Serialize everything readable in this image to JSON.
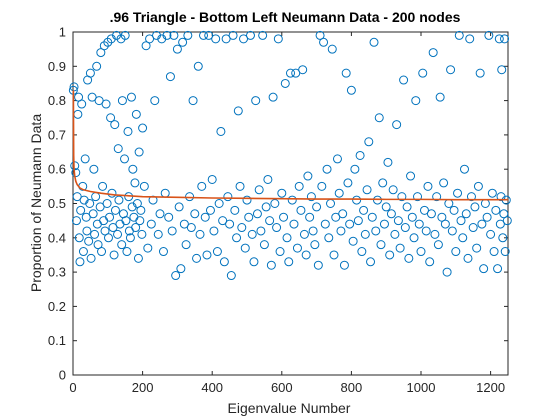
{
  "chart_data": {
    "type": "scatter",
    "title": ".96 Triangle - Bottom Left Neumann Data - 200 nodes",
    "xlabel": "Eigenvalue Number",
    "ylabel": "Proportion of Neumann Data",
    "xlim": [
      0,
      1250
    ],
    "ylim": [
      0,
      1
    ],
    "xticks": [
      0,
      200,
      400,
      600,
      800,
      1000,
      1200
    ],
    "xtick_labels": [
      "0",
      "200",
      "400",
      "600",
      "800",
      "1000",
      "1200"
    ],
    "yticks": [
      0,
      0.1,
      0.2,
      0.3,
      0.4,
      0.5,
      0.6,
      0.7,
      0.8,
      0.9,
      1
    ],
    "ytick_labels": [
      "0",
      "0.1",
      "0.2",
      "0.3",
      "0.4",
      "0.5",
      "0.6",
      "0.7",
      "0.8",
      "0.9",
      "1"
    ],
    "grid": false,
    "series": [
      {
        "marker": "circle-open",
        "color": "#0072BD",
        "points": [
          [
            1,
            0.83
          ],
          [
            3,
            0.84
          ],
          [
            5,
            0.61
          ],
          [
            8,
            0.59
          ],
          [
            10,
            0.45
          ],
          [
            12,
            0.52
          ],
          [
            14,
            0.76
          ],
          [
            16,
            0.81
          ],
          [
            18,
            0.4
          ],
          [
            20,
            0.33
          ],
          [
            22,
            0.48
          ],
          [
            25,
            0.79
          ],
          [
            28,
            0.55
          ],
          [
            30,
            0.36
          ],
          [
            32,
            0.51
          ],
          [
            35,
            0.63
          ],
          [
            38,
            0.46
          ],
          [
            40,
            0.42
          ],
          [
            42,
            0.86
          ],
          [
            45,
            0.39
          ],
          [
            48,
            0.5
          ],
          [
            50,
            0.88
          ],
          [
            52,
            0.34
          ],
          [
            55,
            0.81
          ],
          [
            58,
            0.47
          ],
          [
            60,
            0.6
          ],
          [
            62,
            0.41
          ],
          [
            65,
            0.52
          ],
          [
            68,
            0.9
          ],
          [
            70,
            0.44
          ],
          [
            72,
            0.38
          ],
          [
            75,
            0.8
          ],
          [
            78,
            0.49
          ],
          [
            80,
            0.94
          ],
          [
            82,
            0.36
          ],
          [
            85,
            0.55
          ],
          [
            88,
            0.45
          ],
          [
            90,
            0.96
          ],
          [
            92,
            0.42
          ],
          [
            95,
            0.79
          ],
          [
            98,
            0.5
          ],
          [
            100,
            0.97
          ],
          [
            102,
            0.4
          ],
          [
            105,
            0.46
          ],
          [
            108,
            0.75
          ],
          [
            110,
            0.98
          ],
          [
            112,
            0.53
          ],
          [
            115,
            0.43
          ],
          [
            118,
            0.35
          ],
          [
            120,
            0.73
          ],
          [
            122,
            0.48
          ],
          [
            125,
            0.99
          ],
          [
            128,
            0.41
          ],
          [
            130,
            0.66
          ],
          [
            132,
            0.51
          ],
          [
            135,
            0.44
          ],
          [
            138,
            0.98
          ],
          [
            140,
            0.38
          ],
          [
            142,
            0.8
          ],
          [
            145,
            0.47
          ],
          [
            148,
            0.63
          ],
          [
            150,
            0.99
          ],
          [
            152,
            0.45
          ],
          [
            155,
            0.36
          ],
          [
            158,
            0.71
          ],
          [
            160,
            0.52
          ],
          [
            162,
            0.42
          ],
          [
            165,
            0.4
          ],
          [
            168,
            0.81
          ],
          [
            170,
            0.49
          ],
          [
            172,
            0.6
          ],
          [
            175,
            0.46
          ],
          [
            178,
            0.56
          ],
          [
            180,
            0.43
          ],
          [
            182,
            0.76
          ],
          [
            185,
            0.5
          ],
          [
            188,
            0.34
          ],
          [
            190,
            0.65
          ],
          [
            192,
            0.45
          ],
          [
            195,
            0.48
          ],
          [
            198,
            0.41
          ],
          [
            200,
            0.72
          ],
          [
            205,
            0.55
          ],
          [
            210,
            0.96
          ],
          [
            215,
            0.37
          ],
          [
            220,
            0.98
          ],
          [
            225,
            0.44
          ],
          [
            230,
            0.51
          ],
          [
            235,
            0.8
          ],
          [
            240,
            0.99
          ],
          [
            245,
            0.41
          ],
          [
            250,
            0.47
          ],
          [
            255,
            0.98
          ],
          [
            260,
            0.36
          ],
          [
            265,
            0.53
          ],
          [
            270,
            0.99
          ],
          [
            275,
            0.46
          ],
          [
            280,
            0.87
          ],
          [
            285,
            0.42
          ],
          [
            290,
            0.99
          ],
          [
            295,
            0.29
          ],
          [
            300,
            0.95
          ],
          [
            305,
            0.49
          ],
          [
            310,
            0.31
          ],
          [
            315,
            0.97
          ],
          [
            320,
            0.44
          ],
          [
            325,
            0.38
          ],
          [
            330,
            0.99
          ],
          [
            335,
            0.52
          ],
          [
            340,
            0.43
          ],
          [
            345,
            0.8
          ],
          [
            350,
            0.47
          ],
          [
            355,
            0.34
          ],
          [
            360,
            0.9
          ],
          [
            365,
            0.41
          ],
          [
            370,
            0.55
          ],
          [
            375,
            0.99
          ],
          [
            380,
            0.46
          ],
          [
            385,
            0.35
          ],
          [
            390,
            0.99
          ],
          [
            395,
            0.48
          ],
          [
            400,
            0.57
          ],
          [
            405,
            0.42
          ],
          [
            410,
            0.98
          ],
          [
            415,
            0.36
          ],
          [
            420,
            0.5
          ],
          [
            425,
            0.71
          ],
          [
            430,
            0.45
          ],
          [
            435,
            0.33
          ],
          [
            440,
            0.98
          ],
          [
            445,
            0.52
          ],
          [
            450,
            0.44
          ],
          [
            455,
            0.29
          ],
          [
            460,
            0.99
          ],
          [
            465,
            0.48
          ],
          [
            470,
            0.4
          ],
          [
            475,
            0.77
          ],
          [
            480,
            0.55
          ],
          [
            485,
            0.43
          ],
          [
            490,
            0.98
          ],
          [
            495,
            0.37
          ],
          [
            500,
            0.51
          ],
          [
            505,
            0.46
          ],
          [
            510,
            0.99
          ],
          [
            515,
            0.41
          ],
          [
            520,
            0.33
          ],
          [
            525,
            0.8
          ],
          [
            530,
            0.47
          ],
          [
            535,
            0.54
          ],
          [
            540,
            0.42
          ],
          [
            545,
            0.99
          ],
          [
            550,
            0.38
          ],
          [
            555,
            0.49
          ],
          [
            560,
            0.57
          ],
          [
            565,
            0.45
          ],
          [
            570,
            0.32
          ],
          [
            575,
            0.81
          ],
          [
            580,
            0.5
          ],
          [
            585,
            0.43
          ],
          [
            590,
            0.98
          ],
          [
            595,
            0.36
          ],
          [
            600,
            0.53
          ],
          [
            605,
            0.46
          ],
          [
            610,
            0.85
          ],
          [
            615,
            0.4
          ],
          [
            620,
            0.33
          ],
          [
            625,
            0.88
          ],
          [
            630,
            0.51
          ],
          [
            635,
            0.44
          ],
          [
            640,
            0.88
          ],
          [
            645,
            0.37
          ],
          [
            650,
            0.55
          ],
          [
            655,
            0.48
          ],
          [
            660,
            0.89
          ],
          [
            665,
            0.41
          ],
          [
            670,
            0.35
          ],
          [
            675,
            0.58
          ],
          [
            680,
            0.46
          ],
          [
            685,
            0.52
          ],
          [
            690,
            0.42
          ],
          [
            695,
            0.38
          ],
          [
            700,
            0.49
          ],
          [
            705,
            0.32
          ],
          [
            710,
            0.99
          ],
          [
            715,
            0.55
          ],
          [
            720,
            0.97
          ],
          [
            725,
            0.44
          ],
          [
            730,
            0.6
          ],
          [
            735,
            0.4
          ],
          [
            740,
            0.5
          ],
          [
            745,
            0.95
          ],
          [
            750,
            0.35
          ],
          [
            755,
            0.46
          ],
          [
            760,
            0.63
          ],
          [
            765,
            0.53
          ],
          [
            770,
            0.42
          ],
          [
            775,
            0.47
          ],
          [
            780,
            0.32
          ],
          [
            785,
            0.88
          ],
          [
            790,
            0.56
          ],
          [
            795,
            0.44
          ],
          [
            800,
            0.83
          ],
          [
            805,
            0.39
          ],
          [
            810,
            0.6
          ],
          [
            815,
            0.51
          ],
          [
            820,
            0.45
          ],
          [
            825,
            0.64
          ],
          [
            830,
            0.36
          ],
          [
            835,
            0.48
          ],
          [
            840,
            0.41
          ],
          [
            845,
            0.54
          ],
          [
            850,
            0.68
          ],
          [
            855,
            0.33
          ],
          [
            860,
            0.46
          ],
          [
            865,
            0.97
          ],
          [
            870,
            0.42
          ],
          [
            875,
            0.51
          ],
          [
            880,
            0.75
          ],
          [
            885,
            0.38
          ],
          [
            890,
            0.56
          ],
          [
            895,
            0.44
          ],
          [
            900,
            0.49
          ],
          [
            905,
            0.62
          ],
          [
            910,
            0.35
          ],
          [
            915,
            0.47
          ],
          [
            920,
            0.54
          ],
          [
            925,
            0.41
          ],
          [
            930,
            0.73
          ],
          [
            935,
            0.45
          ],
          [
            940,
            0.37
          ],
          [
            945,
            0.52
          ],
          [
            950,
            0.86
          ],
          [
            955,
            0.43
          ],
          [
            960,
            0.49
          ],
          [
            965,
            0.34
          ],
          [
            970,
            0.58
          ],
          [
            975,
            0.46
          ],
          [
            980,
            0.4
          ],
          [
            985,
            0.8
          ],
          [
            990,
            0.52
          ],
          [
            995,
            0.44
          ],
          [
            1000,
            0.36
          ],
          [
            1005,
            0.88
          ],
          [
            1010,
            0.48
          ],
          [
            1015,
            0.42
          ],
          [
            1020,
            0.55
          ],
          [
            1025,
            0.33
          ],
          [
            1030,
            0.47
          ],
          [
            1035,
            0.94
          ],
          [
            1040,
            0.41
          ],
          [
            1045,
            0.52
          ],
          [
            1050,
            0.38
          ],
          [
            1055,
            0.81
          ],
          [
            1060,
            0.46
          ],
          [
            1065,
            0.56
          ],
          [
            1070,
            0.44
          ],
          [
            1075,
            0.3
          ],
          [
            1080,
            0.5
          ],
          [
            1085,
            0.89
          ],
          [
            1090,
            0.42
          ],
          [
            1095,
            0.48
          ],
          [
            1100,
            0.36
          ],
          [
            1105,
            0.53
          ],
          [
            1110,
            0.99
          ],
          [
            1115,
            0.45
          ],
          [
            1120,
            0.4
          ],
          [
            1125,
            0.6
          ],
          [
            1130,
            0.47
          ],
          [
            1135,
            0.34
          ],
          [
            1140,
            0.98
          ],
          [
            1145,
            0.52
          ],
          [
            1150,
            0.43
          ],
          [
            1155,
            0.49
          ],
          [
            1160,
            0.37
          ],
          [
            1165,
            0.55
          ],
          [
            1170,
            0.88
          ],
          [
            1175,
            0.44
          ],
          [
            1180,
            0.31
          ],
          [
            1185,
            0.5
          ],
          [
            1190,
            0.46
          ],
          [
            1195,
            0.99
          ],
          [
            1200,
            0.41
          ],
          [
            1205,
            0.53
          ],
          [
            1210,
            0.36
          ],
          [
            1215,
            0.48
          ],
          [
            1220,
            0.31
          ],
          [
            1225,
            0.98
          ],
          [
            1228,
            0.44
          ],
          [
            1230,
            0.52
          ],
          [
            1232,
            0.89
          ],
          [
            1235,
            0.4
          ],
          [
            1238,
            0.47
          ],
          [
            1240,
            0.98
          ],
          [
            1242,
            0.36
          ],
          [
            1245,
            0.51
          ],
          [
            1248,
            0.45
          ]
        ]
      },
      {
        "marker": "line",
        "color": "#D95319",
        "points": [
          [
            1,
            0.83
          ],
          [
            2,
            0.64
          ],
          [
            3,
            0.6
          ],
          [
            5,
            0.58
          ],
          [
            8,
            0.565
          ],
          [
            12,
            0.555
          ],
          [
            20,
            0.545
          ],
          [
            30,
            0.54
          ],
          [
            50,
            0.535
          ],
          [
            80,
            0.53
          ],
          [
            120,
            0.525
          ],
          [
            200,
            0.52
          ],
          [
            300,
            0.518
          ],
          [
            400,
            0.516
          ],
          [
            500,
            0.515
          ],
          [
            600,
            0.514
          ],
          [
            700,
            0.513
          ],
          [
            800,
            0.513
          ],
          [
            900,
            0.512
          ],
          [
            1000,
            0.512
          ],
          [
            1100,
            0.511
          ],
          [
            1200,
            0.511
          ],
          [
            1250,
            0.511
          ]
        ]
      }
    ]
  }
}
